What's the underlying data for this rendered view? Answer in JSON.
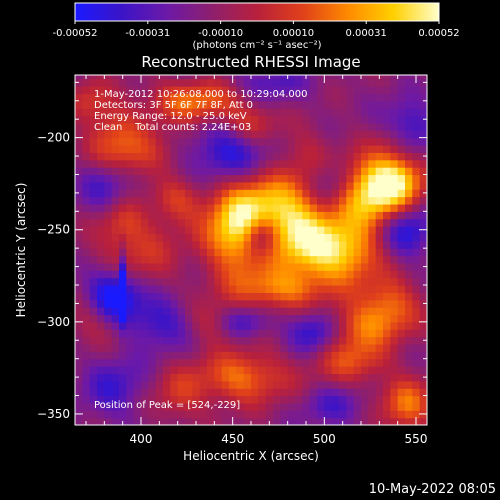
{
  "colorbar": {
    "tick_labels": [
      "-0.00052",
      "-0.00031",
      "-0.00010",
      "0.00010",
      "0.00031",
      "0.00052"
    ],
    "unit": "(photons cm⁻² s⁻¹ asec⁻²)",
    "range": [
      -0.00052,
      0.00052
    ],
    "colors": [
      "#1a1aff",
      "#3a14c8",
      "#6b19a8",
      "#8e1f6e",
      "#b8203c",
      "#e0401a",
      "#ff8a00",
      "#ffd000",
      "#ffffcc"
    ]
  },
  "chart_data": {
    "type": "heatmap",
    "title": "Reconstructed RHESSI Image",
    "xlabel": "Heliocentric X (arcsec)",
    "ylabel": "Heliocentric Y (arcsec)",
    "xlim": [
      364,
      556
    ],
    "ylim": [
      -356,
      -166
    ],
    "x_ticks": [
      400,
      450,
      500,
      550
    ],
    "y_ticks": [
      -200,
      -250,
      -300,
      -350
    ],
    "info_lines": [
      "1-May-2012 10:26:08.000 to 10:29:04.000",
      "Detectors: 3F 5F 6F 7F 8F, Att 0",
      "Energy Range: 12.0 - 25.0 keV",
      "Clean    Total counts: 2.24E+03"
    ],
    "peak_label": "Position of Peak = [524,-229]",
    "peak": [
      524,
      -229
    ],
    "blobs": [
      {
        "x": 470,
        "y": -240,
        "sx": 18,
        "sy": 16,
        "a": 0.75
      },
      {
        "x": 452,
        "y": -252,
        "sx": 12,
        "sy": 16,
        "a": 0.7
      },
      {
        "x": 488,
        "y": -255,
        "sx": 12,
        "sy": 14,
        "a": 0.55
      },
      {
        "x": 510,
        "y": -262,
        "sx": 14,
        "sy": 12,
        "a": 0.8
      },
      {
        "x": 524,
        "y": -229,
        "sx": 16,
        "sy": 13,
        "a": 1.0
      },
      {
        "x": 540,
        "y": -222,
        "sx": 10,
        "sy": 10,
        "a": 0.55
      },
      {
        "x": 475,
        "y": -282,
        "sx": 18,
        "sy": 8,
        "a": 0.55
      },
      {
        "x": 430,
        "y": -180,
        "sx": 18,
        "sy": 8,
        "a": 0.55
      },
      {
        "x": 400,
        "y": -210,
        "sx": 18,
        "sy": 10,
        "a": 0.45
      },
      {
        "x": 385,
        "y": -195,
        "sx": 10,
        "sy": 12,
        "a": 0.3
      },
      {
        "x": 420,
        "y": -232,
        "sx": 10,
        "sy": 10,
        "a": 0.45
      },
      {
        "x": 397,
        "y": -262,
        "sx": 16,
        "sy": 14,
        "a": 0.35
      },
      {
        "x": 455,
        "y": -330,
        "sx": 18,
        "sy": 10,
        "a": 0.55
      },
      {
        "x": 515,
        "y": -320,
        "sx": 14,
        "sy": 10,
        "a": 0.45
      },
      {
        "x": 520,
        "y": -302,
        "sx": 16,
        "sy": 8,
        "a": 0.4
      },
      {
        "x": 535,
        "y": -290,
        "sx": 12,
        "sy": 10,
        "a": 0.5
      },
      {
        "x": 545,
        "y": -345,
        "sx": 10,
        "sy": 10,
        "a": 0.55
      },
      {
        "x": 460,
        "y": -193,
        "sx": 10,
        "sy": 8,
        "a": 0.35
      },
      {
        "x": 420,
        "y": -340,
        "sx": 10,
        "sy": 10,
        "a": 0.3
      },
      {
        "x": 490,
        "y": -208,
        "sx": 10,
        "sy": 10,
        "a": 0.2
      },
      {
        "x": 375,
        "y": -300,
        "sx": 10,
        "sy": 10,
        "a": 0.25
      },
      {
        "x": 440,
        "y": -300,
        "sx": 10,
        "sy": 8,
        "a": 0.3
      },
      {
        "x": 372,
        "y": -180,
        "sx": 8,
        "sy": 8,
        "a": 0.3
      },
      {
        "x": 538,
        "y": -200,
        "sx": 8,
        "sy": 8,
        "a": 0.25
      },
      {
        "x": 390,
        "y": -245,
        "sx": 8,
        "sy": 8,
        "a": 0.25
      },
      {
        "x": 390,
        "y": -280,
        "sx": -1,
        "sy": 12,
        "a": -0.7
      },
      {
        "x": 385,
        "y": -285,
        "sx": 10,
        "sy": 10,
        "a": -0.75
      },
      {
        "x": 450,
        "y": -208,
        "sx": 14,
        "sy": 10,
        "a": -0.55
      },
      {
        "x": 505,
        "y": -225,
        "sx": 10,
        "sy": 10,
        "a": -0.55
      },
      {
        "x": 465,
        "y": -253,
        "sx": 7,
        "sy": 8,
        "a": -0.7
      },
      {
        "x": 495,
        "y": -305,
        "sx": 10,
        "sy": 8,
        "a": -0.55
      },
      {
        "x": 455,
        "y": -300,
        "sx": 10,
        "sy": 6,
        "a": -0.4
      },
      {
        "x": 545,
        "y": -250,
        "sx": 10,
        "sy": 10,
        "a": -0.55
      },
      {
        "x": 545,
        "y": -195,
        "sx": 10,
        "sy": 10,
        "a": -0.5
      },
      {
        "x": 420,
        "y": -220,
        "sx": 14,
        "sy": 10,
        "a": -0.3
      },
      {
        "x": 380,
        "y": -225,
        "sx": 10,
        "sy": 10,
        "a": -0.35
      },
      {
        "x": 470,
        "y": -170,
        "sx": 14,
        "sy": 8,
        "a": -0.3
      },
      {
        "x": 410,
        "y": -300,
        "sx": 12,
        "sy": 10,
        "a": -0.4
      },
      {
        "x": 385,
        "y": -335,
        "sx": 12,
        "sy": 12,
        "a": -0.35
      },
      {
        "x": 505,
        "y": -345,
        "sx": 12,
        "sy": 8,
        "a": -0.3
      }
    ]
  },
  "footer": {
    "timestamp": "10-May-2022 08:05"
  }
}
